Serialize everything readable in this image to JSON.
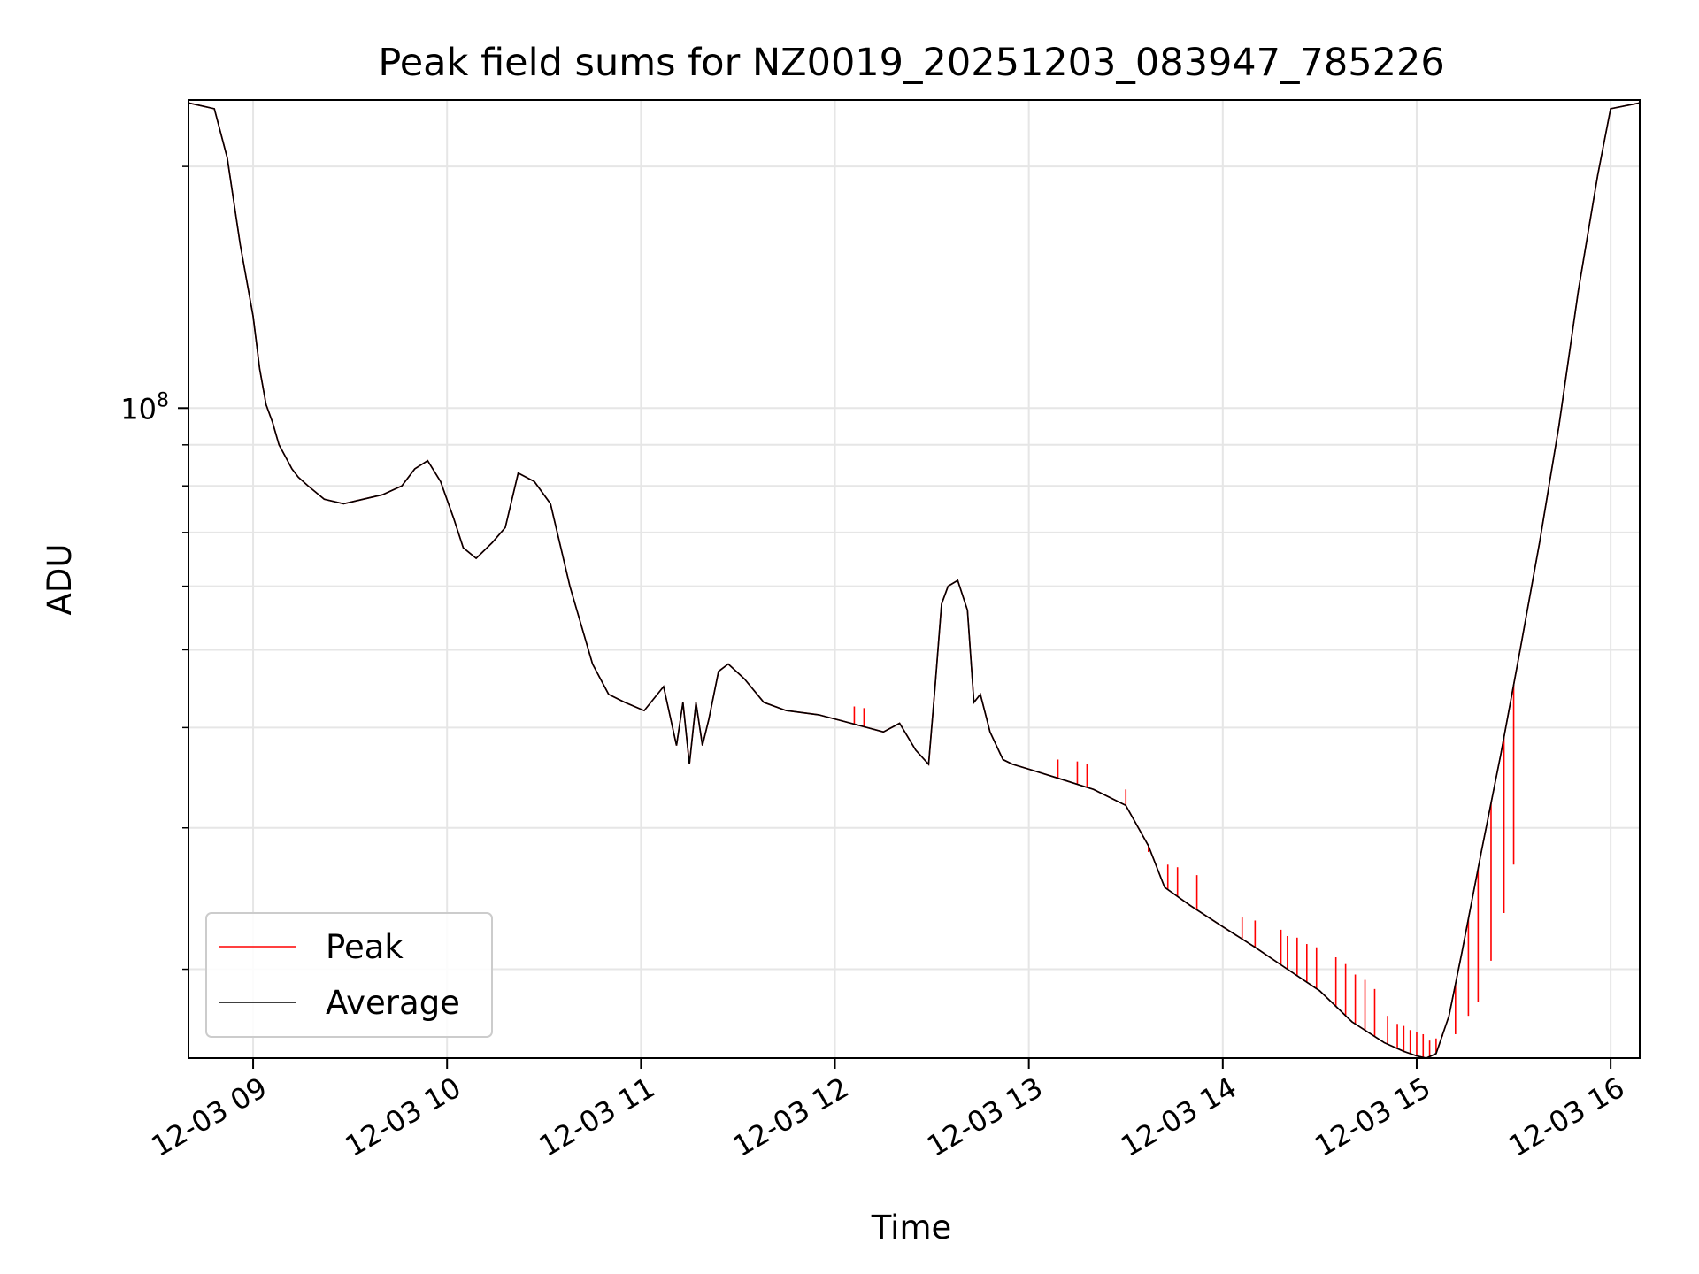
{
  "chart_data": {
    "type": "line",
    "title": "Peak field sums for NZ0019_20251203_083947_785226",
    "xlabel": "Time",
    "ylabel": "ADU",
    "y_scale": "log",
    "ylim": [
      15500000,
      242000000
    ],
    "xlim": [
      "2025-12-03 08:40",
      "2025-12-03 16:09"
    ],
    "x_ticks": [
      {
        "t": "2025-12-03 09:00",
        "label": "12-03 09"
      },
      {
        "t": "2025-12-03 10:00",
        "label": "12-03 10"
      },
      {
        "t": "2025-12-03 11:00",
        "label": "12-03 11"
      },
      {
        "t": "2025-12-03 12:00",
        "label": "12-03 12"
      },
      {
        "t": "2025-12-03 13:00",
        "label": "12-03 13"
      },
      {
        "t": "2025-12-03 14:00",
        "label": "12-03 14"
      },
      {
        "t": "2025-12-03 15:00",
        "label": "12-03 15"
      },
      {
        "t": "2025-12-03 16:00",
        "label": "12-03 16"
      }
    ],
    "y_ticks": [
      {
        "value": 100000000,
        "base": "10",
        "exp": "8"
      }
    ],
    "y_minor_ticks": [
      20000000,
      30000000,
      40000000,
      50000000,
      60000000,
      70000000,
      80000000,
      90000000,
      200000000
    ],
    "grid": true,
    "legend_position": "lower-left",
    "x": [
      "2025-12-03 08:40",
      "2025-12-03 08:48",
      "2025-12-03 08:52",
      "2025-12-03 08:56",
      "2025-12-03 09:00",
      "2025-12-03 09:02",
      "2025-12-03 09:04",
      "2025-12-03 09:06",
      "2025-12-03 09:08",
      "2025-12-03 09:10",
      "2025-12-03 09:12",
      "2025-12-03 09:14",
      "2025-12-03 09:17",
      "2025-12-03 09:22",
      "2025-12-03 09:28",
      "2025-12-03 09:34",
      "2025-12-03 09:40",
      "2025-12-03 09:46",
      "2025-12-03 09:50",
      "2025-12-03 09:54",
      "2025-12-03 09:58",
      "2025-12-03 10:02",
      "2025-12-03 10:05",
      "2025-12-03 10:09",
      "2025-12-03 10:14",
      "2025-12-03 10:18",
      "2025-12-03 10:22",
      "2025-12-03 10:27",
      "2025-12-03 10:32",
      "2025-12-03 10:38",
      "2025-12-03 10:45",
      "2025-12-03 10:50",
      "2025-12-03 10:55",
      "2025-12-03 11:01",
      "2025-12-03 11:07",
      "2025-12-03 11:11",
      "2025-12-03 11:13",
      "2025-12-03 11:15",
      "2025-12-03 11:17",
      "2025-12-03 11:19",
      "2025-12-03 11:21",
      "2025-12-03 11:24",
      "2025-12-03 11:27",
      "2025-12-03 11:32",
      "2025-12-03 11:38",
      "2025-12-03 11:45",
      "2025-12-03 11:55",
      "2025-12-03 12:05",
      "2025-12-03 12:15",
      "2025-12-03 12:20",
      "2025-12-03 12:25",
      "2025-12-03 12:29",
      "2025-12-03 12:31",
      "2025-12-03 12:33",
      "2025-12-03 12:35",
      "2025-12-03 12:38",
      "2025-12-03 12:41",
      "2025-12-03 12:43",
      "2025-12-03 12:45",
      "2025-12-03 12:48",
      "2025-12-03 12:52",
      "2025-12-03 12:55",
      "2025-12-03 13:00",
      "2025-12-03 13:10",
      "2025-12-03 13:20",
      "2025-12-03 13:30",
      "2025-12-03 13:37",
      "2025-12-03 13:42",
      "2025-12-03 13:50",
      "2025-12-03 14:00",
      "2025-12-03 14:10",
      "2025-12-03 14:20",
      "2025-12-03 14:30",
      "2025-12-03 14:40",
      "2025-12-03 14:50",
      "2025-12-03 14:56",
      "2025-12-03 15:00",
      "2025-12-03 15:03",
      "2025-12-03 15:06",
      "2025-12-03 15:10",
      "2025-12-03 15:14",
      "2025-12-03 15:20",
      "2025-12-03 15:26",
      "2025-12-03 15:32",
      "2025-12-03 15:38",
      "2025-12-03 15:44",
      "2025-12-03 15:50",
      "2025-12-03 15:56",
      "2025-12-03 16:00",
      "2025-12-03 16:09"
    ],
    "series": [
      {
        "name": "Average",
        "color": "#000000",
        "values": [
          240000000,
          236000000,
          205000000,
          160000000,
          130000000,
          112000000,
          101000000,
          96000000,
          90000000,
          87000000,
          84000000,
          82000000,
          80000000,
          77000000,
          76000000,
          77000000,
          78000000,
          80000000,
          84000000,
          86000000,
          81000000,
          73000000,
          67000000,
          65000000,
          68000000,
          71000000,
          83000000,
          81000000,
          76000000,
          60000000,
          48000000,
          44000000,
          43000000,
          42000000,
          45000000,
          38000000,
          43000000,
          36000000,
          43000000,
          38000000,
          41000000,
          47000000,
          48000000,
          46000000,
          43000000,
          42000000,
          41500000,
          40500000,
          39500000,
          40500000,
          37500000,
          36000000,
          45000000,
          57000000,
          60000000,
          61000000,
          56000000,
          43000000,
          44000000,
          39500000,
          36500000,
          36000000,
          35500000,
          34500000,
          33500000,
          32000000,
          28500000,
          25300000,
          24000000,
          22600000,
          21300000,
          20000000,
          18800000,
          17200000,
          16200000,
          15800000,
          15600000,
          15500000,
          15700000,
          17500000,
          21000000,
          28000000,
          37000000,
          50000000,
          68000000,
          95000000,
          140000000,
          195000000,
          236000000,
          240000000
        ]
      },
      {
        "name": "Peak",
        "color": "#ff0000",
        "values": [
          240000000,
          236000000,
          205000000,
          160000000,
          130000000,
          112000000,
          101000000,
          96000000,
          90000000,
          87000000,
          84000000,
          82000000,
          80000000,
          77000000,
          76000000,
          77000000,
          78000000,
          80000000,
          84000000,
          86000000,
          81000000,
          73000000,
          67000000,
          65000000,
          68000000,
          71000000,
          83000000,
          81000000,
          76000000,
          60000000,
          48000000,
          44000000,
          43000000,
          42000000,
          45000000,
          38000000,
          43000000,
          36000000,
          43000000,
          38000000,
          41000000,
          47000000,
          48000000,
          46000000,
          43000000,
          42000000,
          41500000,
          40500000,
          39500000,
          40500000,
          37500000,
          36000000,
          45000000,
          57000000,
          60000000,
          61000000,
          56000000,
          43000000,
          44000000,
          39500000,
          36500000,
          36000000,
          35500000,
          34500000,
          33500000,
          32000000,
          28500000,
          25300000,
          24000000,
          22600000,
          21300000,
          20000000,
          18800000,
          17200000,
          16200000,
          15800000,
          15600000,
          15500000,
          15700000,
          17500000,
          21000000,
          28000000,
          37000000,
          50000000,
          68000000,
          95000000,
          140000000,
          195000000,
          236000000,
          240000000
        ],
        "spikes": [
          {
            "t": "2025-12-03 12:06",
            "value": 42500000
          },
          {
            "t": "2025-12-03 12:09",
            "value": 42300000
          },
          {
            "t": "2025-12-03 13:09",
            "value": 36500000
          },
          {
            "t": "2025-12-03 13:15",
            "value": 36300000
          },
          {
            "t": "2025-12-03 13:18",
            "value": 36000000
          },
          {
            "t": "2025-12-03 13:30",
            "value": 33500000
          },
          {
            "t": "2025-12-03 13:37",
            "value": 28000000
          },
          {
            "t": "2025-12-03 13:43",
            "value": 27000000
          },
          {
            "t": "2025-12-03 13:46",
            "value": 26800000
          },
          {
            "t": "2025-12-03 13:52",
            "value": 26200000
          },
          {
            "t": "2025-12-03 14:06",
            "value": 23200000
          },
          {
            "t": "2025-12-03 14:10",
            "value": 23000000
          },
          {
            "t": "2025-12-03 14:18",
            "value": 22400000
          },
          {
            "t": "2025-12-03 14:20",
            "value": 22000000
          },
          {
            "t": "2025-12-03 14:23",
            "value": 21900000
          },
          {
            "t": "2025-12-03 14:26",
            "value": 21500000
          },
          {
            "t": "2025-12-03 14:29",
            "value": 21300000
          },
          {
            "t": "2025-12-03 14:35",
            "value": 20700000
          },
          {
            "t": "2025-12-03 14:38",
            "value": 20300000
          },
          {
            "t": "2025-12-03 14:41",
            "value": 19700000
          },
          {
            "t": "2025-12-03 14:44",
            "value": 19400000
          },
          {
            "t": "2025-12-03 14:47",
            "value": 18900000
          },
          {
            "t": "2025-12-03 14:51",
            "value": 17500000
          },
          {
            "t": "2025-12-03 14:54",
            "value": 17100000
          },
          {
            "t": "2025-12-03 14:56",
            "value": 17000000
          },
          {
            "t": "2025-12-03 14:58",
            "value": 16800000
          },
          {
            "t": "2025-12-03 15:00",
            "value": 16700000
          },
          {
            "t": "2025-12-03 15:02",
            "value": 16600000
          },
          {
            "t": "2025-12-03 15:04",
            "value": 16300000
          },
          {
            "t": "2025-12-03 15:06",
            "value": 16400000
          },
          {
            "t": "2025-12-03 15:08",
            "value": 16500000
          },
          {
            "t": "2025-12-03 15:12",
            "value": 16600000
          },
          {
            "t": "2025-12-03 15:16",
            "value": 17500000
          },
          {
            "t": "2025-12-03 15:19",
            "value": 18200000
          },
          {
            "t": "2025-12-03 15:23",
            "value": 20500000
          },
          {
            "t": "2025-12-03 15:27",
            "value": 23500000
          },
          {
            "t": "2025-12-03 15:30",
            "value": 27000000
          }
        ]
      }
    ]
  }
}
